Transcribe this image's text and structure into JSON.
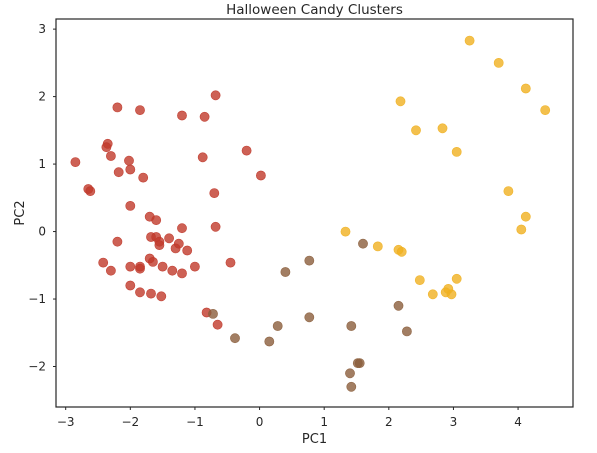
{
  "chart_data": {
    "type": "scatter",
    "title": "Halloween Candy Clusters",
    "xlabel": "PC1",
    "ylabel": "PC2",
    "xlim": [
      -3.15,
      4.85
    ],
    "ylim": [
      -2.6,
      3.15
    ],
    "xticks": [
      -3,
      -2,
      -1,
      0,
      1,
      2,
      3,
      4
    ],
    "yticks": [
      -2,
      -1,
      0,
      1,
      2,
      3
    ],
    "grid": false,
    "legend": "none",
    "point_opacity": 0.8,
    "series": [
      {
        "color": "#c0392b",
        "points": [
          [
            -2.85,
            1.03
          ],
          [
            -2.65,
            0.63
          ],
          [
            -2.62,
            0.6
          ],
          [
            -2.35,
            1.3
          ],
          [
            -2.37,
            1.25
          ],
          [
            -2.3,
            1.12
          ],
          [
            -2.2,
            1.84
          ],
          [
            -2.18,
            0.88
          ],
          [
            -2.02,
            1.05
          ],
          [
            -2.0,
            0.92
          ],
          [
            -1.85,
            1.8
          ],
          [
            -1.8,
            0.8
          ],
          [
            -2.0,
            0.38
          ],
          [
            -2.42,
            -0.46
          ],
          [
            -2.3,
            -0.58
          ],
          [
            -2.2,
            -0.15
          ],
          [
            -2.0,
            -0.52
          ],
          [
            -1.85,
            -0.55
          ],
          [
            -1.85,
            -0.52
          ],
          [
            -1.7,
            0.22
          ],
          [
            -1.6,
            0.17
          ],
          [
            -1.68,
            -0.08
          ],
          [
            -1.6,
            -0.08
          ],
          [
            -1.55,
            -0.15
          ],
          [
            -1.55,
            -0.2
          ],
          [
            -1.4,
            -0.1
          ],
          [
            -1.3,
            -0.25
          ],
          [
            -1.25,
            -0.18
          ],
          [
            -1.2,
            0.05
          ],
          [
            -1.12,
            -0.28
          ],
          [
            -1.7,
            -0.4
          ],
          [
            -1.65,
            -0.45
          ],
          [
            -1.5,
            -0.52
          ],
          [
            -1.35,
            -0.58
          ],
          [
            -1.2,
            -0.62
          ],
          [
            -1.0,
            -0.52
          ],
          [
            -2.0,
            -0.8
          ],
          [
            -1.85,
            -0.9
          ],
          [
            -1.68,
            -0.92
          ],
          [
            -1.52,
            -0.96
          ],
          [
            -1.2,
            1.72
          ],
          [
            -0.85,
            1.7
          ],
          [
            -0.88,
            1.1
          ],
          [
            -0.68,
            2.02
          ],
          [
            -0.7,
            0.57
          ],
          [
            -0.68,
            0.07
          ],
          [
            -0.2,
            1.2
          ],
          [
            -0.45,
            -0.46
          ],
          [
            0.02,
            0.83
          ],
          [
            -0.82,
            -1.2
          ],
          [
            -0.65,
            -1.38
          ]
        ]
      },
      {
        "color": "#8b5e3c",
        "points": [
          [
            -0.72,
            -1.22
          ],
          [
            -0.38,
            -1.58
          ],
          [
            0.15,
            -1.63
          ],
          [
            0.28,
            -1.4
          ],
          [
            0.4,
            -0.6
          ],
          [
            0.77,
            -0.43
          ],
          [
            0.77,
            -1.27
          ],
          [
            1.42,
            -1.4
          ],
          [
            1.55,
            -1.95
          ],
          [
            1.52,
            -1.95
          ],
          [
            1.4,
            -2.1
          ],
          [
            1.42,
            -2.3
          ],
          [
            1.6,
            -0.18
          ],
          [
            2.15,
            -1.1
          ],
          [
            2.28,
            -1.48
          ]
        ]
      },
      {
        "color": "#f0b020",
        "points": [
          [
            3.25,
            2.83
          ],
          [
            3.7,
            2.5
          ],
          [
            2.18,
            1.93
          ],
          [
            4.12,
            2.12
          ],
          [
            4.42,
            1.8
          ],
          [
            2.42,
            1.5
          ],
          [
            2.83,
            1.53
          ],
          [
            3.05,
            1.18
          ],
          [
            3.85,
            0.6
          ],
          [
            4.12,
            0.22
          ],
          [
            4.05,
            0.03
          ],
          [
            1.33,
            0.0
          ],
          [
            1.83,
            -0.22
          ],
          [
            2.15,
            -0.27
          ],
          [
            2.2,
            -0.3
          ],
          [
            2.48,
            -0.72
          ],
          [
            2.68,
            -0.93
          ],
          [
            2.88,
            -0.9
          ],
          [
            2.92,
            -0.85
          ],
          [
            2.97,
            -0.93
          ],
          [
            3.05,
            -0.7
          ]
        ]
      }
    ]
  }
}
